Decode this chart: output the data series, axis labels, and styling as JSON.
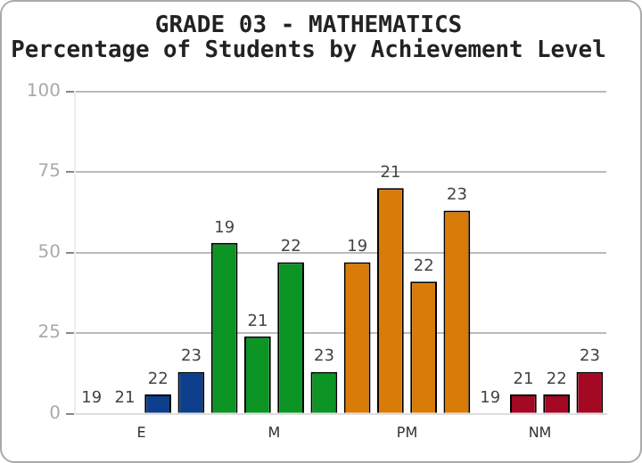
{
  "chart_data": {
    "type": "bar",
    "title": [
      "GRADE 03 - MATHEMATICS",
      "Percentage of Students by Achievement Level"
    ],
    "categories": [
      "E",
      "M",
      "PM",
      "NM"
    ],
    "series": [
      {
        "name": "19",
        "colors": [
          "#0d3f8c",
          "#0c9424",
          "#d97b07",
          "#a50823"
        ],
        "values": [
          0,
          53,
          47,
          0
        ]
      },
      {
        "name": "21",
        "colors": [
          "#0d3f8c",
          "#0c9424",
          "#d97b07",
          "#a50823"
        ],
        "values": [
          0,
          24,
          70,
          6
        ]
      },
      {
        "name": "22",
        "colors": [
          "#0d3f8c",
          "#0c9424",
          "#d97b07",
          "#a50823"
        ],
        "values": [
          6,
          47,
          41,
          6
        ]
      },
      {
        "name": "23",
        "colors": [
          "#0d3f8c",
          "#0c9424",
          "#d97b07",
          "#a50823"
        ],
        "values": [
          13,
          13,
          63,
          13
        ]
      }
    ],
    "ylim": [
      0,
      100
    ],
    "yticks": [
      0,
      25,
      50,
      75,
      100
    ],
    "grid": "y",
    "legend": false
  }
}
